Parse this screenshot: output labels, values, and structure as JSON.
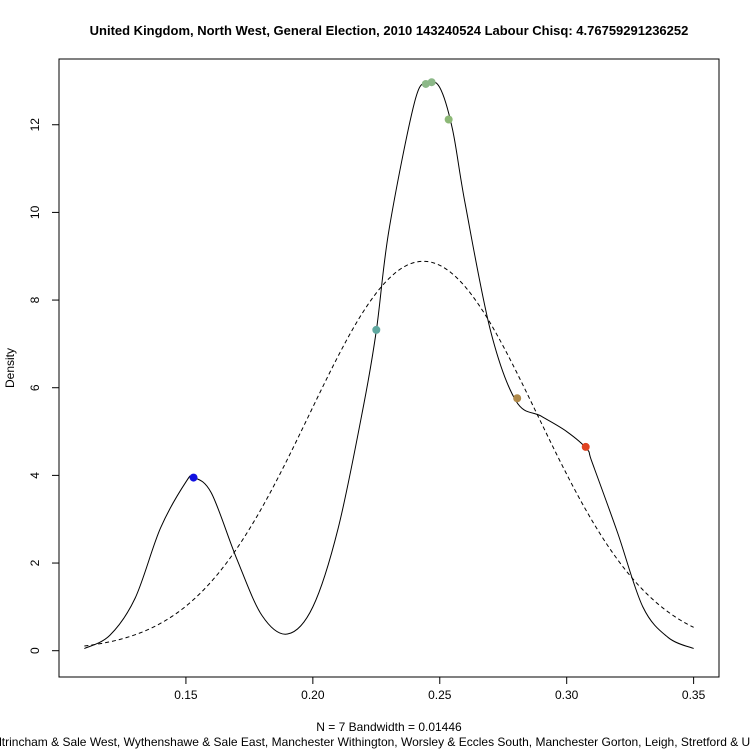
{
  "chart_data": {
    "type": "line",
    "title": "United Kingdom, North West, General Election, 2010 143240524 Labour Chisq: 4.76759291236252",
    "xlabel": "N = 7   Bandwidth = 0.01446",
    "subtitle": "Altrincham & Sale West, Wythenshawe & Sale East, Manchester Withington, Worsley & Eccles South, Manchester Gorton, Leigh, Stretford & Urmston",
    "ylabel": "Density",
    "xlim": [
      0.1,
      0.36
    ],
    "ylim": [
      -0.6,
      13.5
    ],
    "x_ticks": [
      "0.15",
      "0.20",
      "0.25",
      "0.30",
      "0.35"
    ],
    "x_tick_values": [
      0.15,
      0.2,
      0.25,
      0.3,
      0.35
    ],
    "y_ticks": [
      "0",
      "2",
      "4",
      "6",
      "8",
      "10",
      "12"
    ],
    "y_tick_values": [
      0,
      2,
      4,
      6,
      8,
      10,
      12
    ],
    "bandwidth": 0.01446,
    "kde_curve": {
      "x": [
        0.11,
        0.12,
        0.13,
        0.14,
        0.15,
        0.153,
        0.16,
        0.17,
        0.18,
        0.19,
        0.2,
        0.21,
        0.22,
        0.225,
        0.23,
        0.24,
        0.245,
        0.25,
        0.255,
        0.26,
        0.27,
        0.28,
        0.29,
        0.3,
        0.308,
        0.31,
        0.32,
        0.33,
        0.34,
        0.35
      ],
      "y": [
        0.05,
        0.35,
        1.2,
        2.8,
        3.85,
        3.95,
        3.6,
        2.1,
        0.8,
        0.38,
        1.0,
        2.8,
        5.6,
        7.3,
        9.6,
        12.5,
        12.95,
        12.85,
        11.9,
        10.2,
        7.3,
        5.7,
        5.35,
        5.0,
        4.6,
        4.3,
        2.7,
        1.0,
        0.3,
        0.05
      ]
    },
    "normal_curve": {
      "mean": 0.2435,
      "sd": 0.0449,
      "x_range": [
        0.11,
        0.35
      ],
      "style": "dashed"
    },
    "points": [
      {
        "x": 0.153,
        "y": 3.95,
        "color": "#1010e0"
      },
      {
        "x": 0.225,
        "y": 7.32,
        "color": "#5fa8a0"
      },
      {
        "x": 0.2445,
        "y": 12.93,
        "color": "#8cb888"
      },
      {
        "x": 0.2468,
        "y": 12.97,
        "color": "#8cb888"
      },
      {
        "x": 0.2535,
        "y": 12.12,
        "color": "#8cb876"
      },
      {
        "x": 0.2805,
        "y": 5.76,
        "color": "#b08a4a"
      },
      {
        "x": 0.3075,
        "y": 4.65,
        "color": "#e04422"
      }
    ],
    "grid": false
  }
}
